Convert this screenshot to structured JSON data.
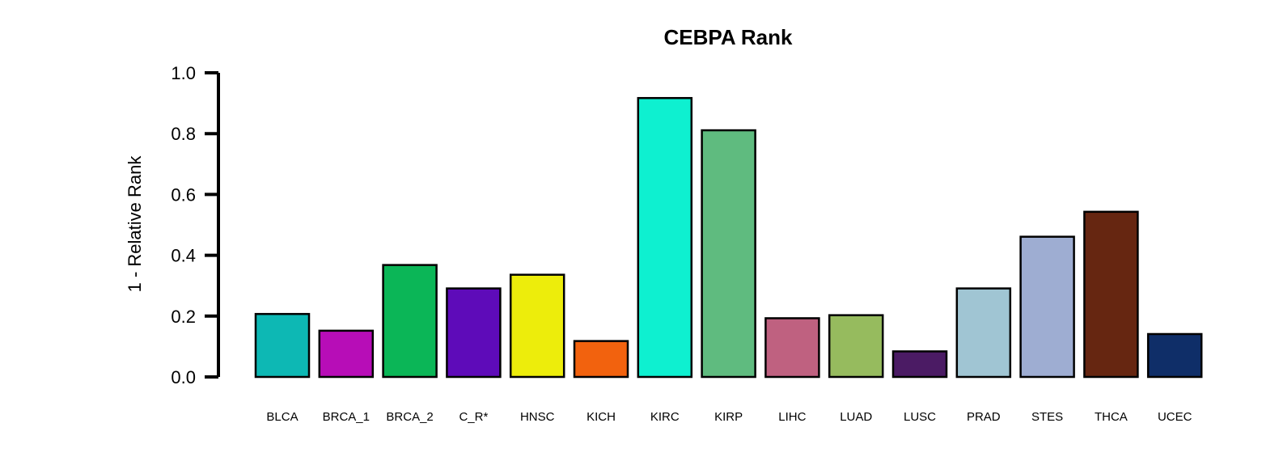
{
  "chart_data": {
    "type": "bar",
    "title": "CEBPA Rank",
    "xlabel": "",
    "ylabel": "1 - Relative Rank",
    "ylim": [
      0,
      1
    ],
    "yticks": [
      "0.0",
      "0.2",
      "0.4",
      "0.6",
      "0.8",
      "1.0"
    ],
    "categories": [
      "BLCA",
      "BRCA_1",
      "BRCA_2",
      "C_R*",
      "HNSC",
      "KICH",
      "KIRC",
      "KIRP",
      "LIHC",
      "LUAD",
      "LUSC",
      "PRAD",
      "STES",
      "THCA",
      "UCEC"
    ],
    "values": [
      0.207,
      0.152,
      0.368,
      0.291,
      0.336,
      0.118,
      0.917,
      0.811,
      0.193,
      0.203,
      0.084,
      0.291,
      0.461,
      0.543,
      0.141
    ],
    "colors": [
      "#0db8b4",
      "#b70db7",
      "#0bb657",
      "#5e0bb9",
      "#eded0b",
      "#f2620e",
      "#0ef0d0",
      "#5fbb7f",
      "#bf6180",
      "#96bb5e",
      "#4b1b64",
      "#a0c5d3",
      "#9eadd2",
      "#662611",
      "#0f2e68"
    ],
    "grid": false,
    "legend": "none"
  }
}
